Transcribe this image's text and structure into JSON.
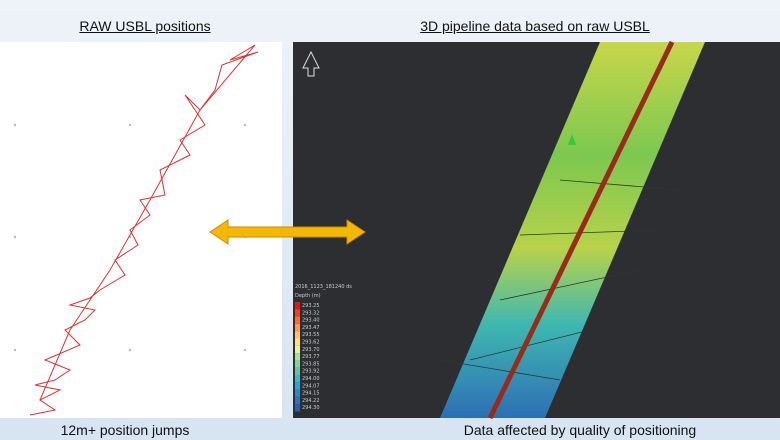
{
  "left_panel": {
    "title": "RAW USBL positions",
    "caption": "12m+ position jumps"
  },
  "right_panel": {
    "title": "3D pipeline data based on raw USBL",
    "caption": "Data affected by quality of positioning",
    "legend": {
      "file": "2016_1123_181240 ds",
      "heading": "Depth (m)",
      "labels": [
        "293.25",
        "293.32",
        "293.40",
        "293.47",
        "293.55",
        "293.62",
        "293.70",
        "293.77",
        "293.85",
        "293.92",
        "294.00",
        "294.07",
        "294.15",
        "294.22",
        "294.30"
      ]
    }
  }
}
